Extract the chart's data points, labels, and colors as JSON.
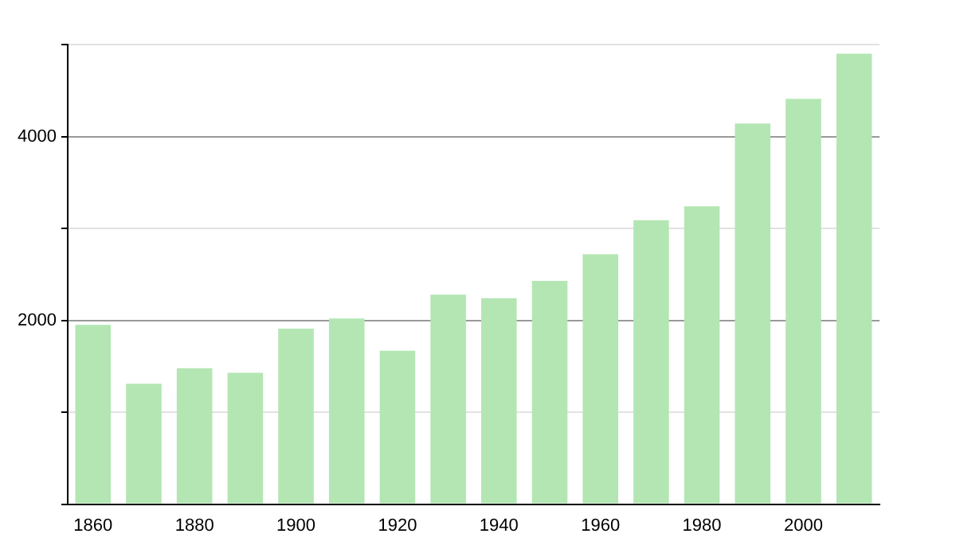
{
  "chart_data": {
    "type": "bar",
    "categories": [
      "1860",
      null,
      "1880",
      null,
      "1900",
      null,
      "1920",
      null,
      "1940",
      null,
      "1960",
      null,
      "1980",
      null,
      "2000",
      null
    ],
    "values": [
      1950,
      1310,
      1480,
      1430,
      1910,
      2020,
      1670,
      2280,
      2240,
      2430,
      2720,
      3090,
      3240,
      4140,
      4410,
      4900
    ],
    "color": "#b3e6b3",
    "ylim": [
      0,
      5000
    ],
    "yticks": [
      {
        "value": 0,
        "label": null
      },
      {
        "value": 1000,
        "label": null
      },
      2000,
      {
        "value": 3000,
        "label": null
      },
      4000,
      {
        "value": 5000,
        "label": null
      }
    ],
    "grid": "y"
  }
}
